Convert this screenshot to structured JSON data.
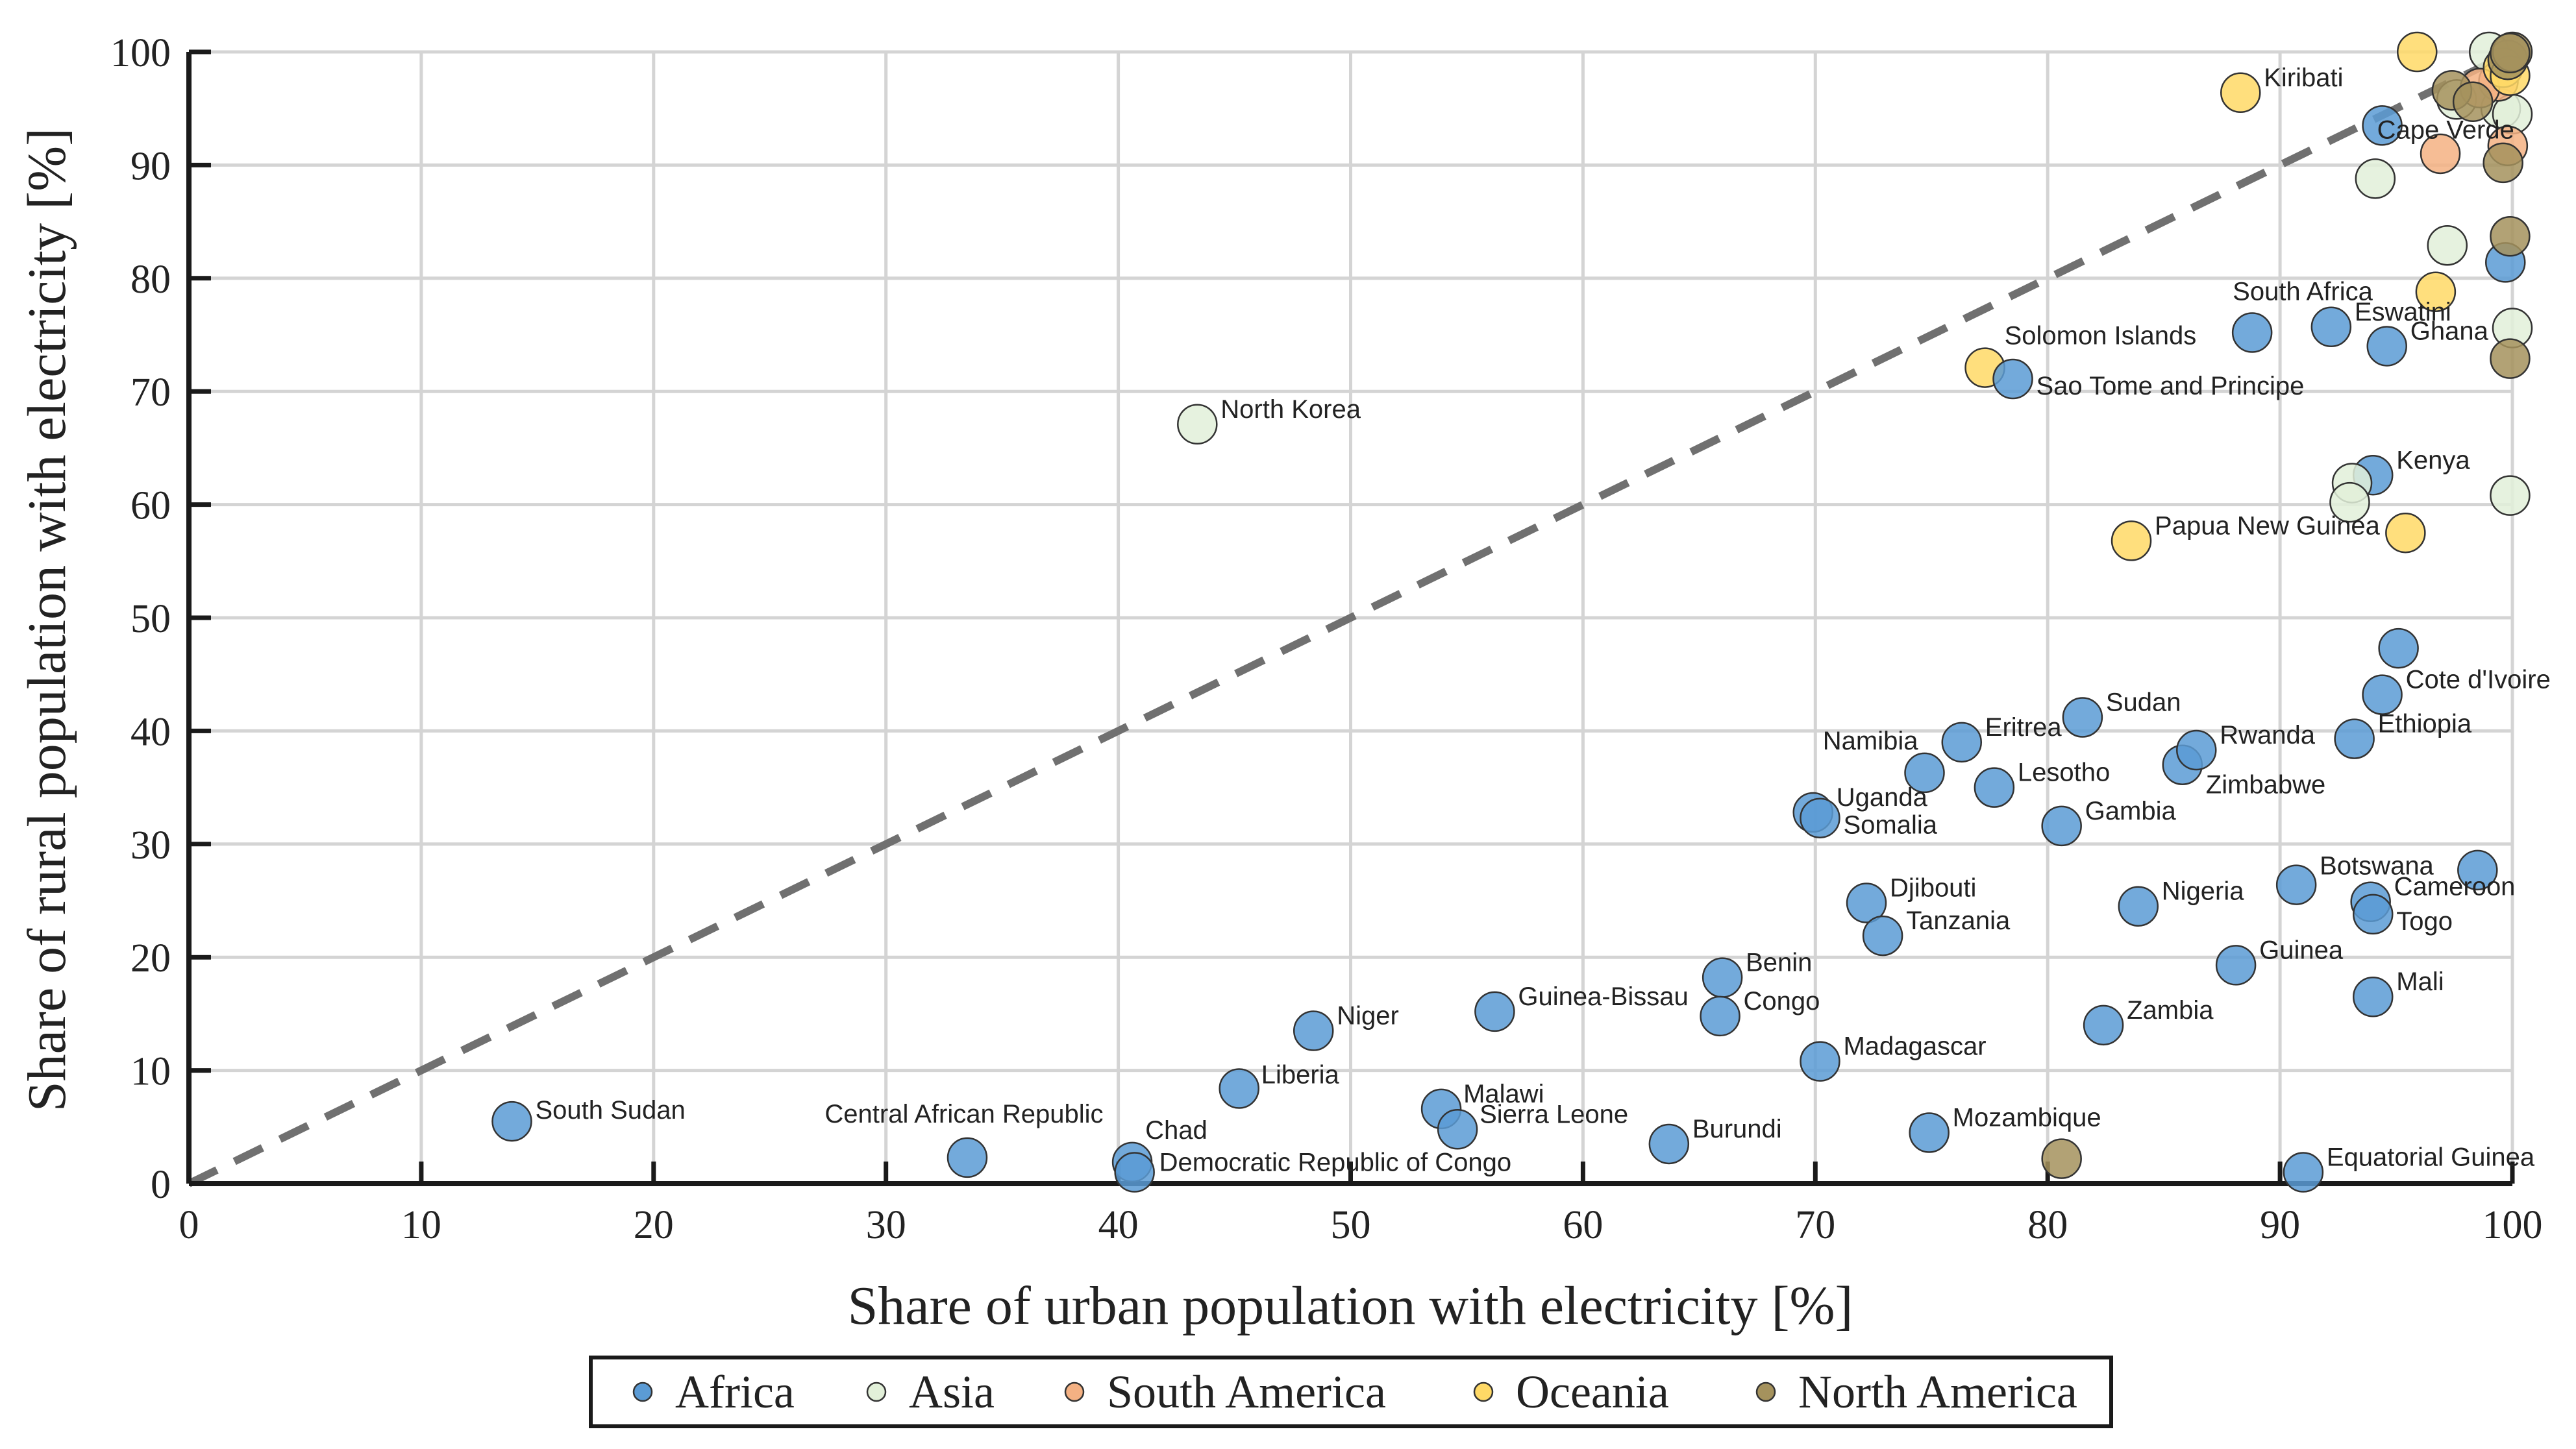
{
  "chart_data": {
    "type": "scatter",
    "xlabel": "Share of urban population with electricity [%]",
    "ylabel": "Share of rural population with electricity [%]",
    "xlim": [
      0,
      100
    ],
    "ylim": [
      0,
      100
    ],
    "xticks": [
      "0",
      "10",
      "20",
      "30",
      "40",
      "50",
      "60",
      "70",
      "80",
      "90",
      "100"
    ],
    "yticks": [
      "0",
      "10",
      "20",
      "30",
      "40",
      "50",
      "60",
      "70",
      "80",
      "90",
      "100"
    ],
    "grid": true,
    "reference_line": {
      "style": "dashed",
      "from": [
        0,
        0
      ],
      "to": [
        100,
        100
      ]
    },
    "legend_position": "bottom-center",
    "colors": {
      "Africa": "#5b9bd5",
      "Asia": "#e2f0d9",
      "South America": "#f4b183",
      "Oceania": "#ffd966",
      "North America": "#a5925d"
    },
    "legend": [
      {
        "name": "Africa",
        "label": "Africa"
      },
      {
        "name": "Asia",
        "label": "Asia"
      },
      {
        "name": "South America",
        "label": "South America"
      },
      {
        "name": "Oceania",
        "label": "Oceania"
      },
      {
        "name": "North America",
        "label": "North America"
      }
    ],
    "points": [
      {
        "region": "Africa",
        "x": 13.9,
        "y": 5.5,
        "label": "South Sudan"
      },
      {
        "region": "Africa",
        "x": 33.5,
        "y": 2.3,
        "label": "Central African Republic"
      },
      {
        "region": "Africa",
        "x": 40.6,
        "y": 1.9,
        "label": "Chad"
      },
      {
        "region": "Africa",
        "x": 40.7,
        "y": 1.0,
        "label": "Democratic Republic of Congo"
      },
      {
        "region": "Africa",
        "x": 45.2,
        "y": 8.4,
        "label": "Liberia"
      },
      {
        "region": "Africa",
        "x": 48.4,
        "y": 13.5,
        "label": "Niger"
      },
      {
        "region": "Africa",
        "x": 53.9,
        "y": 6.6,
        "label": "Malawi"
      },
      {
        "region": "Africa",
        "x": 54.6,
        "y": 4.8,
        "label": "Sierra Leone"
      },
      {
        "region": "Africa",
        "x": 56.2,
        "y": 15.2,
        "label": "Guinea-Bissau"
      },
      {
        "region": "Africa",
        "x": 63.7,
        "y": 3.5,
        "label": "Burundi"
      },
      {
        "region": "Africa",
        "x": 66.0,
        "y": 18.2,
        "label": "Benin"
      },
      {
        "region": "Africa",
        "x": 65.9,
        "y": 14.8,
        "label": "Congo"
      },
      {
        "region": "Africa",
        "x": 70.2,
        "y": 10.8,
        "label": "Madagascar"
      },
      {
        "region": "Africa",
        "x": 69.9,
        "y": 32.8,
        "label": "Uganda"
      },
      {
        "region": "Africa",
        "x": 70.2,
        "y": 32.3,
        "label": "Somalia"
      },
      {
        "region": "Africa",
        "x": 72.2,
        "y": 24.8,
        "label": "Djibouti"
      },
      {
        "region": "Africa",
        "x": 72.9,
        "y": 21.9,
        "label": "Tanzania"
      },
      {
        "region": "Africa",
        "x": 74.7,
        "y": 36.3,
        "label": "Namibia"
      },
      {
        "region": "Africa",
        "x": 74.9,
        "y": 4.5,
        "label": "Mozambique"
      },
      {
        "region": "Africa",
        "x": 76.3,
        "y": 39.0,
        "label": "Eritrea"
      },
      {
        "region": "Africa",
        "x": 77.7,
        "y": 35.0,
        "label": "Lesotho"
      },
      {
        "region": "Africa",
        "x": 80.6,
        "y": 31.6,
        "label": "Gambia"
      },
      {
        "region": "Africa",
        "x": 81.5,
        "y": 41.2,
        "label": "Sudan"
      },
      {
        "region": "Africa",
        "x": 82.4,
        "y": 14.0,
        "label": "Zambia"
      },
      {
        "region": "Africa",
        "x": 83.9,
        "y": 24.5,
        "label": "Nigeria"
      },
      {
        "region": "Africa",
        "x": 85.8,
        "y": 37.0,
        "label": "Zimbabwe"
      },
      {
        "region": "Africa",
        "x": 86.4,
        "y": 38.3,
        "label": "Rwanda"
      },
      {
        "region": "Africa",
        "x": 88.1,
        "y": 19.3,
        "label": "Guinea"
      },
      {
        "region": "Africa",
        "x": 88.8,
        "y": 75.2,
        "label": "South Africa"
      },
      {
        "region": "Africa",
        "x": 90.7,
        "y": 26.4,
        "label": "Botswana"
      },
      {
        "region": "Africa",
        "x": 91.0,
        "y": 1.0,
        "label": "Equatorial Guinea"
      },
      {
        "region": "Africa",
        "x": 92.2,
        "y": 75.7,
        "label": "Eswatini"
      },
      {
        "region": "Africa",
        "x": 93.2,
        "y": 39.3,
        "label": "Ethiopia"
      },
      {
        "region": "Africa",
        "x": 93.9,
        "y": 24.9,
        "label": "Cameroon"
      },
      {
        "region": "Africa",
        "x": 94.0,
        "y": 23.8,
        "label": "Togo"
      },
      {
        "region": "Africa",
        "x": 94.0,
        "y": 16.5,
        "label": "Mali"
      },
      {
        "region": "Africa",
        "x": 94.0,
        "y": 62.6,
        "label": "Kenya"
      },
      {
        "region": "Africa",
        "x": 94.4,
        "y": 43.2,
        "label": "Cote d'Ivoire"
      },
      {
        "region": "Africa",
        "x": 94.4,
        "y": 93.5,
        "label": "Cape Verde"
      },
      {
        "region": "Africa",
        "x": 94.6,
        "y": 74.0,
        "label": "Ghana"
      },
      {
        "region": "Africa",
        "x": 95.1,
        "y": 47.3
      },
      {
        "region": "Africa",
        "x": 98.5,
        "y": 27.7
      },
      {
        "region": "Africa",
        "x": 99.7,
        "y": 81.4
      },
      {
        "region": "Asia",
        "x": 43.4,
        "y": 67.1,
        "label": "North Korea"
      },
      {
        "region": "Asia",
        "x": 93.1,
        "y": 61.9
      },
      {
        "region": "Asia",
        "x": 93.0,
        "y": 60.2
      },
      {
        "region": "Asia",
        "x": 94.1,
        "y": 88.8
      },
      {
        "region": "Asia",
        "x": 97.2,
        "y": 82.9
      },
      {
        "region": "Asia",
        "x": 99.9,
        "y": 60.8
      },
      {
        "region": "Asia",
        "x": 100.0,
        "y": 75.6
      },
      {
        "region": "Asia",
        "x": 99.0,
        "y": 100.0
      },
      {
        "region": "Asia",
        "x": 99.5,
        "y": 95.0
      },
      {
        "region": "Asia",
        "x": 100.0,
        "y": 94.5
      },
      {
        "region": "Asia",
        "x": 97.6,
        "y": 95.8
      },
      {
        "region": "South America",
        "x": 96.9,
        "y": 91.0
      },
      {
        "region": "South America",
        "x": 99.8,
        "y": 91.7
      },
      {
        "region": "South America",
        "x": 99.4,
        "y": 97.4
      },
      {
        "region": "South America",
        "x": 98.6,
        "y": 96.8
      },
      {
        "region": "Oceania",
        "x": 88.3,
        "y": 96.4,
        "label": "Kiribati"
      },
      {
        "region": "Oceania",
        "x": 77.3,
        "y": 72.1,
        "label": "Solomon Islands"
      },
      {
        "region": "Oceania",
        "x": 83.6,
        "y": 56.8,
        "label": "Papua New Guinea"
      },
      {
        "region": "Oceania",
        "x": 95.4,
        "y": 57.5
      },
      {
        "region": "Oceania",
        "x": 96.7,
        "y": 78.8
      },
      {
        "region": "Oceania",
        "x": 95.9,
        "y": 100.0
      },
      {
        "region": "Oceania",
        "x": 99.6,
        "y": 98.6
      },
      {
        "region": "Oceania",
        "x": 99.9,
        "y": 97.9
      },
      {
        "region": "Africa",
        "x": 78.5,
        "y": 71.1,
        "label": "Sao Tome and Principe"
      },
      {
        "region": "North America",
        "x": 80.6,
        "y": 2.2
      },
      {
        "region": "North America",
        "x": 99.6,
        "y": 90.2
      },
      {
        "region": "North America",
        "x": 99.9,
        "y": 83.7
      },
      {
        "region": "North America",
        "x": 99.9,
        "y": 72.9
      },
      {
        "region": "North America",
        "x": 97.4,
        "y": 96.6
      },
      {
        "region": "North America",
        "x": 98.3,
        "y": 95.6
      },
      {
        "region": "North America",
        "x": 99.8,
        "y": 99.3
      },
      {
        "region": "North America",
        "x": 100.0,
        "y": 100.0
      },
      {
        "region": "North America",
        "x": 99.9,
        "y": 99.9
      }
    ]
  }
}
